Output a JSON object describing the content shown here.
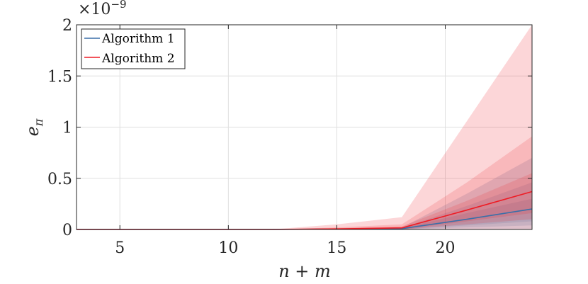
{
  "chart_data": {
    "type": "line",
    "title": "",
    "xlabel": "n + m",
    "ylabel": "e_π",
    "ylabel_main": "e",
    "ylabel_sub": "π",
    "xlim": [
      3,
      24
    ],
    "ylim": [
      0,
      2
    ],
    "xticks": [
      5,
      10,
      15,
      20
    ],
    "yticks": [
      0,
      0.5,
      1,
      1.5,
      2
    ],
    "ytick_labels": [
      "0",
      "0.5",
      "1",
      "1.5",
      "2"
    ],
    "y_exponent_base": "×10",
    "y_exponent_power": "−9",
    "grid": true,
    "legend_position": "top-left",
    "x": [
      3,
      6,
      9,
      12,
      15,
      18,
      21,
      24
    ],
    "series": [
      {
        "name": "Algorithm 1",
        "color": "#3a6fa8",
        "values": [
          0,
          0,
          0,
          0,
          0.004,
          0.008,
          0.1,
          0.2
        ],
        "bands": [
          {
            "lower": [
              0,
              0,
              0,
              0,
              0,
              0,
              0.04,
              0.08
            ],
            "upper": [
              0,
              0,
              0,
              0,
              0.006,
              0.012,
              0.16,
              0.3
            ]
          },
          {
            "lower": [
              0,
              0,
              0,
              0,
              0,
              0,
              0.02,
              0.04
            ],
            "upper": [
              0,
              0,
              0,
              0,
              0.008,
              0.016,
              0.23,
              0.46
            ]
          },
          {
            "lower": [
              0,
              0,
              0,
              0,
              0,
              0,
              0.0,
              0.0
            ],
            "upper": [
              0,
              0,
              0,
              0,
              0.01,
              0.02,
              0.35,
              0.7
            ]
          }
        ]
      },
      {
        "name": "Algorithm 2",
        "color": "#ee1c25",
        "values": [
          0,
          0,
          0,
          0,
          0.006,
          0.015,
          0.19,
          0.37
        ],
        "bands": [
          {
            "lower": [
              0,
              0,
              0,
              0,
              0,
              0,
              0.08,
              0.16
            ],
            "upper": [
              0,
              0,
              0,
              0,
              0.012,
              0.03,
              0.28,
              0.55
            ]
          },
          {
            "lower": [
              0,
              0,
              0,
              0,
              0,
              0,
              0.05,
              0.1
            ],
            "upper": [
              0,
              0,
              0,
              0,
              0.02,
              0.05,
              0.46,
              0.91
            ]
          },
          {
            "lower": [
              0,
              0,
              0,
              0,
              0,
              0,
              0.0,
              0.0
            ],
            "upper": [
              0,
              0,
              0,
              0,
              0.05,
              0.12,
              1.06,
              2.0
            ]
          }
        ]
      }
    ]
  }
}
